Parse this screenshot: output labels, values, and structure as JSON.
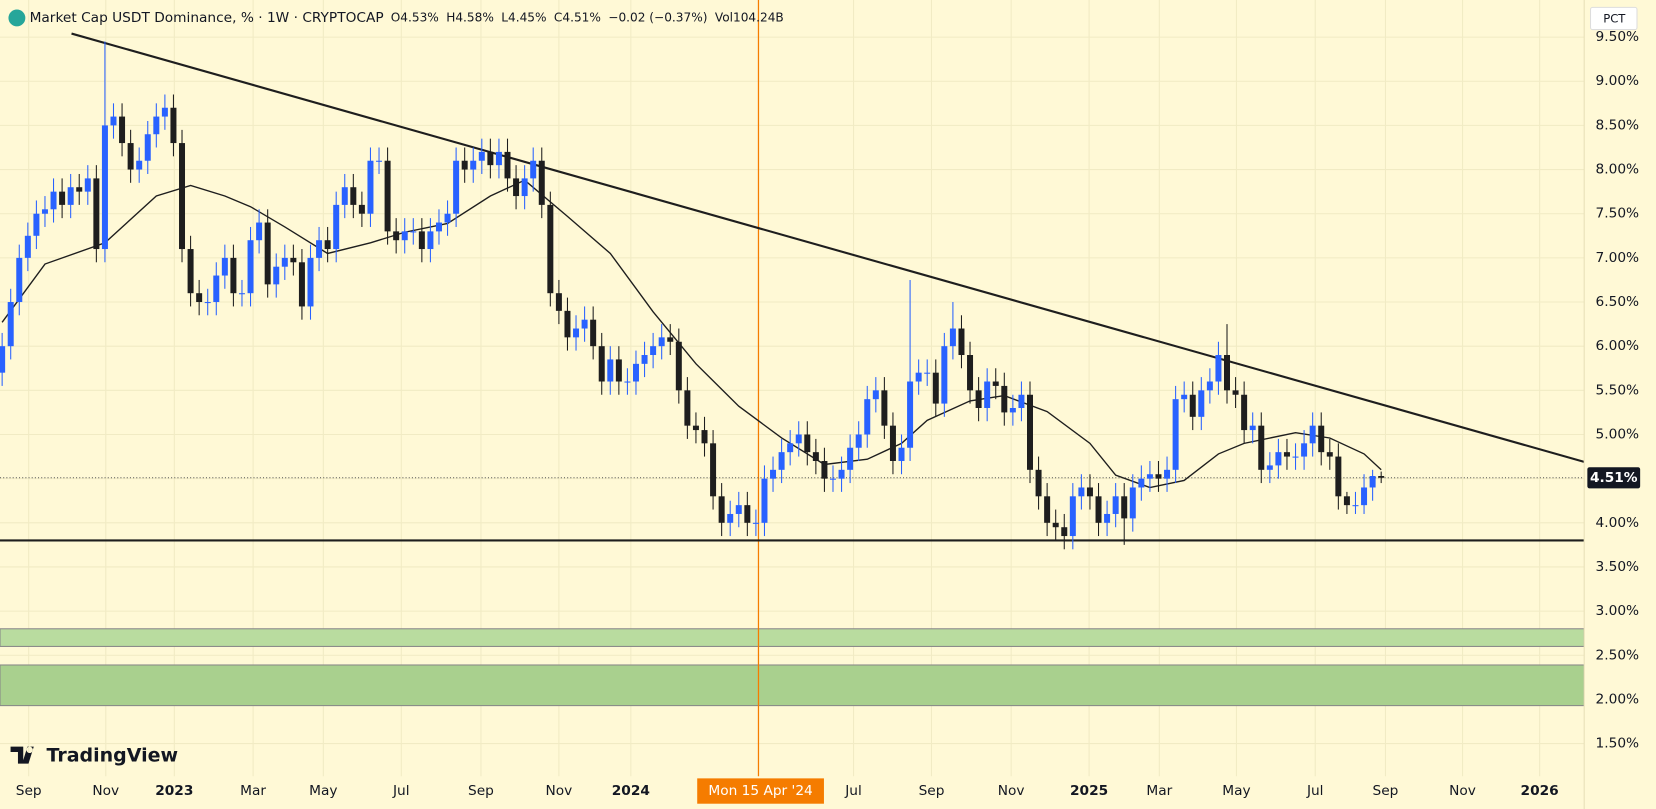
{
  "chart_data": {
    "type": "candlestick",
    "title": "Market Cap USDT Dominance, % · 1W · CRYPTOCAP",
    "legend_values": [
      "O4.53%",
      "H4.58%",
      "L4.45%",
      "C4.51%",
      "−0.02 (−0.37%)",
      "Vol104.24B"
    ],
    "scale_button": "PCT",
    "brand": "TradingView",
    "up_color": "#2962ff",
    "down_color": "#1e1e1e",
    "open": [
      5.7,
      6.0,
      6.5,
      7.0,
      7.25,
      7.5,
      7.55,
      7.75,
      7.6,
      7.8,
      7.75,
      7.9,
      7.1,
      8.5,
      8.6,
      8.3,
      8.0,
      8.1,
      8.4,
      8.6,
      8.7,
      8.3,
      7.1,
      6.6,
      6.5,
      6.5,
      6.8,
      7.0,
      6.6,
      6.6,
      7.2,
      7.4,
      6.7,
      6.9,
      7.0,
      6.95,
      6.45,
      7.0,
      7.2,
      7.1,
      7.6,
      7.8,
      7.6,
      7.5,
      8.1,
      8.1,
      7.3,
      7.2,
      7.3,
      7.3,
      7.1,
      7.3,
      7.4,
      7.5,
      8.1,
      8.0,
      8.1,
      8.2,
      8.05,
      8.2,
      7.9,
      7.7,
      7.9,
      8.1,
      7.6,
      6.6,
      6.4,
      6.1,
      6.2,
      6.3,
      6.0,
      5.6,
      5.85,
      5.6,
      5.6,
      5.8,
      5.9,
      6.0,
      6.1,
      6.05,
      5.5,
      5.1,
      5.05,
      4.9,
      4.3,
      4.0,
      4.1,
      4.2,
      4.0,
      4.0,
      4.5,
      4.6,
      4.8,
      4.9,
      5.0,
      4.8,
      4.7,
      4.5,
      4.5,
      4.6,
      4.85,
      5.0,
      5.4,
      5.5,
      5.1,
      4.7,
      4.85,
      5.6,
      5.7,
      5.7,
      5.35,
      6.0,
      6.2,
      5.9,
      5.5,
      5.3,
      5.6,
      5.55,
      5.25,
      5.3,
      5.45,
      4.6,
      4.3,
      4.0,
      3.95,
      3.85,
      4.3,
      4.4,
      4.3,
      4.0,
      4.1,
      4.3,
      4.05,
      4.4,
      4.5,
      4.55,
      4.5,
      4.6,
      5.4,
      5.45,
      5.2,
      5.5,
      5.6,
      5.9,
      5.5,
      5.45,
      5.05,
      5.1,
      4.6,
      4.65,
      4.8,
      4.75,
      4.75,
      4.9,
      5.1,
      4.8,
      4.75,
      4.3,
      4.2,
      4.2,
      4.4,
      4.53
    ],
    "high": [
      6.15,
      6.65,
      7.15,
      7.4,
      7.65,
      7.7,
      7.9,
      7.9,
      7.95,
      7.95,
      8.05,
      8.05,
      9.45,
      8.75,
      8.75,
      8.45,
      8.25,
      8.55,
      8.75,
      8.85,
      8.85,
      8.45,
      7.25,
      6.75,
      6.65,
      6.95,
      7.15,
      7.15,
      6.75,
      7.35,
      7.55,
      7.55,
      7.05,
      7.15,
      7.15,
      7.1,
      7.15,
      7.35,
      7.35,
      7.75,
      7.95,
      7.95,
      7.75,
      8.25,
      8.25,
      8.25,
      7.45,
      7.45,
      7.45,
      7.45,
      7.45,
      7.55,
      7.65,
      8.25,
      8.25,
      8.25,
      8.35,
      8.35,
      8.35,
      8.35,
      8.05,
      8.05,
      8.25,
      8.25,
      7.75,
      6.75,
      6.55,
      6.35,
      6.45,
      6.45,
      6.15,
      6.0,
      6.0,
      5.75,
      5.95,
      6.05,
      6.15,
      6.25,
      6.25,
      6.2,
      5.65,
      5.25,
      5.2,
      5.05,
      4.45,
      4.25,
      4.35,
      4.35,
      4.15,
      4.65,
      4.75,
      4.95,
      5.05,
      5.15,
      5.15,
      4.95,
      4.85,
      4.65,
      4.75,
      5.0,
      5.15,
      5.55,
      5.65,
      5.65,
      5.25,
      5.0,
      6.75,
      5.85,
      5.85,
      5.85,
      6.15,
      6.5,
      6.35,
      6.05,
      5.65,
      5.75,
      5.75,
      5.7,
      5.45,
      5.6,
      5.6,
      4.75,
      4.45,
      4.15,
      4.1,
      4.45,
      4.55,
      4.55,
      4.45,
      4.25,
      4.45,
      4.45,
      4.55,
      4.65,
      4.7,
      4.7,
      4.75,
      5.55,
      5.6,
      5.6,
      5.65,
      5.75,
      6.05,
      6.25,
      5.65,
      5.6,
      5.25,
      5.25,
      4.8,
      4.95,
      4.95,
      4.9,
      5.05,
      5.25,
      5.25,
      4.95,
      4.9,
      4.35,
      4.35,
      4.55,
      4.6,
      4.58
    ],
    "low": [
      5.55,
      5.85,
      6.35,
      6.85,
      7.1,
      7.35,
      7.4,
      7.45,
      7.45,
      7.6,
      7.6,
      6.95,
      6.95,
      8.35,
      8.15,
      7.85,
      7.85,
      7.95,
      8.25,
      8.45,
      8.15,
      6.95,
      6.45,
      6.35,
      6.35,
      6.35,
      6.65,
      6.45,
      6.45,
      6.45,
      7.05,
      6.55,
      6.55,
      6.75,
      6.8,
      6.3,
      6.3,
      6.85,
      6.95,
      6.95,
      7.45,
      7.45,
      7.35,
      7.35,
      7.95,
      7.15,
      7.05,
      7.05,
      7.15,
      6.95,
      6.95,
      7.15,
      7.25,
      7.35,
      7.85,
      7.85,
      7.95,
      7.9,
      7.9,
      7.75,
      7.55,
      7.55,
      7.75,
      7.45,
      6.45,
      6.25,
      5.95,
      5.95,
      6.05,
      5.85,
      5.45,
      5.45,
      5.45,
      5.45,
      5.45,
      5.65,
      5.75,
      5.85,
      5.9,
      5.35,
      4.95,
      4.9,
      4.75,
      4.15,
      3.85,
      3.85,
      3.95,
      3.85,
      3.85,
      3.85,
      4.35,
      4.45,
      4.65,
      4.75,
      4.65,
      4.55,
      4.35,
      4.35,
      4.35,
      4.45,
      4.7,
      4.85,
      5.25,
      4.95,
      4.55,
      4.55,
      4.7,
      5.45,
      5.55,
      5.2,
      5.2,
      5.85,
      5.75,
      5.35,
      5.15,
      5.15,
      5.4,
      5.1,
      5.1,
      5.15,
      4.45,
      4.15,
      3.85,
      3.8,
      3.7,
      3.7,
      4.15,
      4.15,
      3.85,
      3.85,
      3.95,
      3.75,
      3.9,
      4.25,
      4.35,
      4.35,
      4.35,
      4.45,
      5.25,
      5.05,
      5.05,
      5.35,
      5.45,
      5.35,
      5.3,
      4.9,
      4.9,
      4.45,
      4.45,
      4.5,
      4.6,
      4.6,
      4.6,
      4.75,
      4.65,
      4.6,
      4.15,
      4.1,
      4.1,
      4.1,
      4.25,
      4.45
    ],
    "close": [
      6.0,
      6.5,
      7.0,
      7.25,
      7.5,
      7.55,
      7.75,
      7.6,
      7.8,
      7.75,
      7.9,
      7.1,
      8.5,
      8.6,
      8.3,
      8.0,
      8.1,
      8.4,
      8.6,
      8.7,
      8.3,
      7.1,
      6.6,
      6.5,
      6.5,
      6.8,
      7.0,
      6.6,
      6.6,
      7.2,
      7.4,
      6.7,
      6.9,
      7.0,
      6.95,
      6.45,
      7.0,
      7.2,
      7.1,
      7.6,
      7.8,
      7.6,
      7.5,
      8.1,
      8.1,
      7.3,
      7.2,
      7.3,
      7.3,
      7.1,
      7.3,
      7.4,
      7.5,
      8.1,
      8.0,
      8.1,
      8.2,
      8.05,
      8.2,
      7.9,
      7.7,
      7.9,
      8.1,
      7.6,
      6.6,
      6.4,
      6.1,
      6.2,
      6.3,
      6.0,
      5.6,
      5.85,
      5.6,
      5.6,
      5.8,
      5.9,
      6.0,
      6.1,
      6.05,
      5.5,
      5.1,
      5.05,
      4.9,
      4.3,
      4.0,
      4.1,
      4.2,
      4.0,
      4.0,
      4.5,
      4.6,
      4.8,
      4.9,
      5.0,
      4.8,
      4.7,
      4.5,
      4.5,
      4.6,
      4.85,
      5.0,
      5.4,
      5.5,
      5.1,
      4.7,
      4.85,
      5.6,
      5.7,
      5.7,
      5.35,
      6.0,
      6.2,
      5.9,
      5.5,
      5.3,
      5.6,
      5.55,
      5.25,
      5.3,
      5.45,
      4.6,
      4.3,
      4.0,
      3.95,
      3.85,
      4.3,
      4.4,
      4.3,
      4.0,
      4.1,
      4.3,
      4.05,
      4.4,
      4.5,
      4.55,
      4.5,
      4.6,
      5.4,
      5.45,
      5.2,
      5.5,
      5.6,
      5.9,
      5.5,
      5.45,
      5.05,
      5.1,
      4.6,
      4.65,
      4.8,
      4.75,
      4.75,
      4.9,
      5.1,
      4.8,
      4.75,
      4.3,
      4.2,
      4.2,
      4.4,
      4.53,
      4.51
    ],
    "ma": {
      "color": "#1e1e1e",
      "x": [
        0,
        5,
        12,
        18,
        22,
        26,
        29,
        33,
        38,
        43,
        47,
        52,
        57,
        61,
        66,
        71,
        76,
        81,
        86,
        91,
        96,
        101,
        105,
        108,
        113,
        117,
        122,
        127,
        130,
        134,
        138,
        142,
        145,
        151,
        155,
        159,
        161
      ],
      "values": [
        6.27,
        6.93,
        7.17,
        7.7,
        7.82,
        7.7,
        7.58,
        7.35,
        7.05,
        7.17,
        7.29,
        7.39,
        7.7,
        7.88,
        7.47,
        7.05,
        6.39,
        5.8,
        5.32,
        4.96,
        4.66,
        4.72,
        4.9,
        5.16,
        5.38,
        5.44,
        5.26,
        4.9,
        4.54,
        4.4,
        4.48,
        4.78,
        4.9,
        5.02,
        4.96,
        4.78,
        4.6
      ]
    },
    "trendlines": [
      {
        "color": "#1e1e1e",
        "x": [
          8.1,
          184.7
        ],
        "values": [
          9.54,
          4.69
        ]
      },
      {
        "color": "#1e1e1e",
        "x": [
          -0.25,
          184.7
        ],
        "values": [
          3.8,
          3.8
        ]
      }
    ],
    "zones": [
      {
        "color": "#b9dc9f",
        "values": [
          2.6,
          2.8
        ]
      },
      {
        "color": "#a9d08e",
        "values": [
          1.93,
          2.39
        ]
      }
    ],
    "crosshair": {
      "x": 88.3,
      "label": "Mon 15 Apr '24",
      "color": "#f57c00"
    },
    "last_price": {
      "value": 4.51,
      "label": "4.51%"
    },
    "xlim": [
      -0.25,
      184.7
    ],
    "xticks": [
      {
        "value": 3.1,
        "label": "Sep"
      },
      {
        "value": 12.1,
        "label": "Nov"
      },
      {
        "value": 20.1,
        "label": "2023"
      },
      {
        "value": 29.3,
        "label": "Mar"
      },
      {
        "value": 37.5,
        "label": "May"
      },
      {
        "value": 46.6,
        "label": "Jul"
      },
      {
        "value": 55.9,
        "label": "Sep"
      },
      {
        "value": 65,
        "label": "Nov"
      },
      {
        "value": 73.4,
        "label": "2024"
      },
      {
        "value": 99.4,
        "label": "Jul"
      },
      {
        "value": 108.5,
        "label": "Sep"
      },
      {
        "value": 117.8,
        "label": "Nov"
      },
      {
        "value": 126.9,
        "label": "2025"
      },
      {
        "value": 135.1,
        "label": "Mar"
      },
      {
        "value": 144.1,
        "label": "May"
      },
      {
        "value": 153.3,
        "label": "Jul"
      },
      {
        "value": 161.5,
        "label": "Sep"
      },
      {
        "value": 170.5,
        "label": "Nov"
      },
      {
        "value": 179.5,
        "label": "2026"
      }
    ],
    "ylim": [
      1.13,
      9.92
    ],
    "yticks": [
      {
        "value": 1.5,
        "label": "1.50%"
      },
      {
        "value": 2,
        "label": "2.00%"
      },
      {
        "value": 2.5,
        "label": "2.50%"
      },
      {
        "value": 3,
        "label": "3.00%"
      },
      {
        "value": 3.5,
        "label": "3.50%"
      },
      {
        "value": 4,
        "label": "4.00%"
      },
      {
        "value": 4.5,
        "label": "4.50%"
      },
      {
        "value": 5,
        "label": "5.00%"
      },
      {
        "value": 5.5,
        "label": "5.50%"
      },
      {
        "value": 6,
        "label": "6.00%"
      },
      {
        "value": 6.5,
        "label": "6.50%"
      },
      {
        "value": 7,
        "label": "7.00%"
      },
      {
        "value": 7.5,
        "label": "7.50%"
      },
      {
        "value": 8,
        "label": "8.00%"
      },
      {
        "value": 8.5,
        "label": "8.50%"
      },
      {
        "value": 9,
        "label": "9.00%"
      },
      {
        "value": 9.5,
        "label": "9.50%"
      }
    ],
    "grid": true
  }
}
